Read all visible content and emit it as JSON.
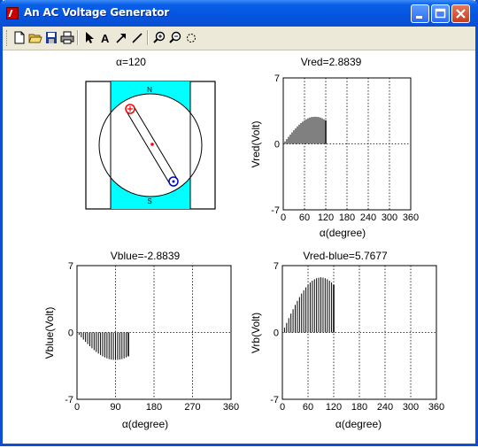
{
  "window": {
    "title": "An AC Voltage Generator"
  },
  "toolbar": {
    "items": [
      "new-file",
      "open-file",
      "save-file",
      "print",
      "select-arrow",
      "insert-text",
      "insert-arrow",
      "insert-line",
      "zoom-in",
      "zoom-out",
      "rotate"
    ]
  },
  "generator": {
    "title": "α=120",
    "north_label": "N",
    "south_label": "S",
    "colors": {
      "magnet": "#00ffff",
      "red_terminal": "#ff0000",
      "blue_terminal": "#0000cc"
    }
  },
  "chart_data": [
    {
      "type": "bar",
      "title": "Vred=2.8839",
      "xlabel": "α(degree)",
      "ylabel": "Vred(Volt)",
      "xlim": [
        0,
        360
      ],
      "ylim": [
        -7,
        7
      ],
      "xticks": [
        "0",
        "60",
        "120",
        "180",
        "240",
        "300",
        "360"
      ],
      "yticks": [
        "-7",
        "0",
        "7"
      ],
      "grid": true,
      "x": [
        0,
        5,
        10,
        15,
        20,
        25,
        30,
        35,
        40,
        45,
        50,
        55,
        60,
        65,
        70,
        75,
        80,
        85,
        90,
        95,
        100,
        105,
        110,
        115,
        120
      ],
      "values": [
        0,
        0.25,
        0.5,
        0.75,
        0.99,
        1.22,
        1.44,
        1.65,
        1.85,
        2.04,
        2.21,
        2.36,
        2.5,
        2.61,
        2.71,
        2.79,
        2.84,
        2.87,
        2.88,
        2.87,
        2.84,
        2.79,
        2.71,
        2.61,
        2.5
      ]
    },
    {
      "type": "bar",
      "title": "Vblue=-2.8839",
      "xlabel": "α(degree)",
      "ylabel": "Vblue(Volt)",
      "xlim": [
        0,
        360
      ],
      "ylim": [
        -7,
        7
      ],
      "xticks": [
        "0",
        "90",
        "180",
        "270",
        "360"
      ],
      "yticks": [
        "-7",
        "0",
        "7"
      ],
      "grid": true,
      "x": [
        0,
        5,
        10,
        15,
        20,
        25,
        30,
        35,
        40,
        45,
        50,
        55,
        60,
        65,
        70,
        75,
        80,
        85,
        90,
        95,
        100,
        105,
        110,
        115,
        120
      ],
      "values": [
        0,
        -0.25,
        -0.5,
        -0.75,
        -0.99,
        -1.22,
        -1.44,
        -1.65,
        -1.85,
        -2.04,
        -2.21,
        -2.36,
        -2.5,
        -2.61,
        -2.71,
        -2.79,
        -2.84,
        -2.87,
        -2.88,
        -2.87,
        -2.84,
        -2.79,
        -2.71,
        -2.61,
        -2.5
      ]
    },
    {
      "type": "bar",
      "title": "Vred-blue=5.7677",
      "xlabel": "α(degree)",
      "ylabel": "Vrb(Volt)",
      "xlim": [
        0,
        360
      ],
      "ylim": [
        -7,
        7
      ],
      "xticks": [
        "0",
        "60",
        "120",
        "180",
        "240",
        "300",
        "360"
      ],
      "yticks": [
        "-7",
        "0",
        "7"
      ],
      "grid": true,
      "x": [
        0,
        5,
        10,
        15,
        20,
        25,
        30,
        35,
        40,
        45,
        50,
        55,
        60,
        65,
        70,
        75,
        80,
        85,
        90,
        95,
        100,
        105,
        110,
        115,
        120
      ],
      "values": [
        0,
        0.5,
        1.0,
        1.5,
        1.97,
        2.44,
        2.88,
        3.31,
        3.71,
        4.08,
        4.42,
        4.72,
        4.99,
        5.23,
        5.42,
        5.57,
        5.68,
        5.74,
        5.77,
        5.74,
        5.68,
        5.57,
        5.42,
        5.23,
        4.99
      ]
    }
  ]
}
